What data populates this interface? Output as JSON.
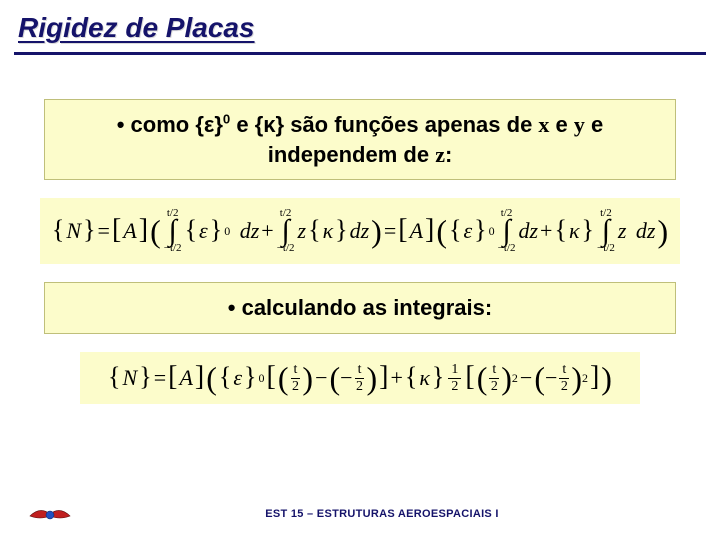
{
  "title": "Rigidez de Placas",
  "box1_html": "• como {ε}<sup class='p'>0</sup> e {κ} são funções apenas de <span class='serif'>x</span> e <span class='serif'>y</span> e independem de <span class='serif'>z</span>:",
  "box2_text": "• calculando as integrais:",
  "footer": "EST 15 – ESTRUTURAS AEROESPACIAIS I",
  "colors": {
    "title": "#15136a",
    "box_bg": "#fcfccb",
    "box_border": "#bfbf7a",
    "footer_text": "#15136a"
  },
  "eq1": {
    "lhs_var": "N",
    "matrix": "A",
    "int_upper": "t/2",
    "int_lower": "−t/2",
    "eps": "ε",
    "eps_sup": "0",
    "kappa": "κ",
    "dz": "dz",
    "z": "z"
  },
  "eq2": {
    "lhs_var": "N",
    "matrix": "A",
    "eps": "ε",
    "eps_sup": "0",
    "kappa": "κ",
    "t": "t",
    "two": "2",
    "half_num": "1",
    "half_den": "2",
    "sq": "2"
  }
}
